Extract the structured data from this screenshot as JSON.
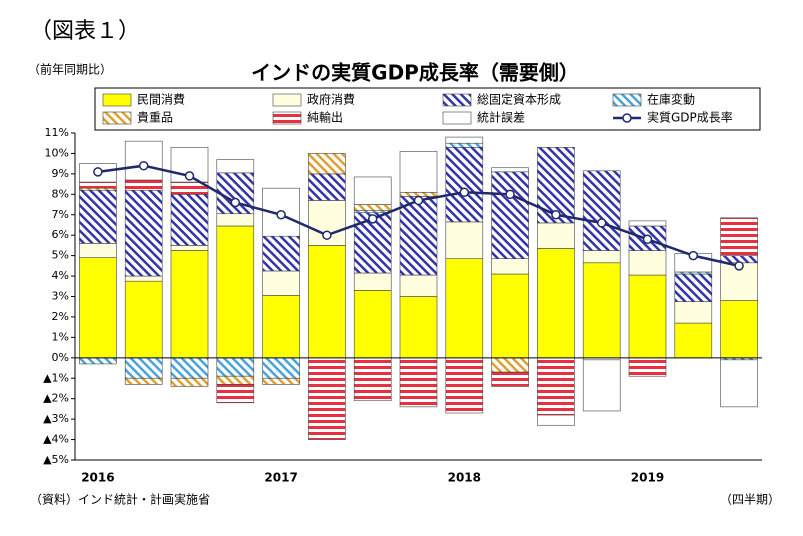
{
  "chart_data": {
    "type": "bar",
    "figure_label": "（図表１）",
    "title": "インドの実質GDP成長率（需要側）",
    "y_axis_label": "（前年同期比）",
    "source": "（資料）インド統計・計画実施省",
    "x_axis_label": "（四半期）",
    "stacked": true,
    "categories": [
      "2016",
      null,
      null,
      null,
      "2017",
      null,
      null,
      null,
      "2018",
      null,
      null,
      null,
      "2019",
      null,
      null
    ],
    "ylim": [
      -5,
      11
    ],
    "yticks": [
      {
        "value": 11,
        "label": "11%"
      },
      {
        "value": 10,
        "label": "10%"
      },
      {
        "value": 9,
        "label": "9%"
      },
      {
        "value": 8,
        "label": "8%"
      },
      {
        "value": 7,
        "label": "7%"
      },
      {
        "value": 6,
        "label": "6%"
      },
      {
        "value": 5,
        "label": "5%"
      },
      {
        "value": 4,
        "label": "4%"
      },
      {
        "value": 3,
        "label": "3%"
      },
      {
        "value": 2,
        "label": "2%"
      },
      {
        "value": 1,
        "label": "1%"
      },
      {
        "value": 0,
        "label": "0%"
      },
      {
        "value": -1,
        "label": "▲1%"
      },
      {
        "value": -2,
        "label": "▲2%"
      },
      {
        "value": -3,
        "label": "▲3%"
      },
      {
        "value": -4,
        "label": "▲4%"
      },
      {
        "value": -5,
        "label": "▲5%"
      }
    ],
    "series": [
      {
        "name": "民間消費",
        "type": "bar",
        "color": "#ffff00",
        "pattern": "solid",
        "values": [
          4.9,
          3.75,
          5.25,
          6.45,
          3.05,
          5.5,
          3.3,
          3.0,
          4.85,
          4.1,
          5.35,
          4.65,
          4.05,
          1.7,
          2.8
        ]
      },
      {
        "name": "政府消費",
        "type": "bar",
        "color": "#ffffe0",
        "pattern": "solid",
        "values": [
          0.7,
          0.25,
          0.25,
          0.6,
          1.2,
          2.2,
          0.85,
          1.05,
          1.8,
          0.75,
          1.25,
          0.6,
          1.2,
          1.05,
          1.85
        ]
      },
      {
        "name": "総固定資本形成",
        "type": "bar",
        "color": "#3333aa",
        "pattern": "diagonal",
        "values": [
          2.6,
          4.2,
          2.5,
          2.0,
          1.7,
          1.3,
          2.95,
          3.85,
          3.65,
          4.25,
          3.7,
          3.9,
          1.2,
          1.35,
          0.35
        ]
      },
      {
        "name": "在庫変動",
        "type": "bar",
        "color": "#4aa3d8",
        "pattern": "diagonal",
        "values": [
          -0.3,
          -1.0,
          -1.0,
          -0.9,
          -1.0,
          0,
          0.1,
          0,
          0.2,
          0,
          0,
          0,
          0,
          0.1,
          -0.1
        ]
      },
      {
        "name": "貴重品",
        "type": "bar",
        "color": "#e0a030",
        "pattern": "diagonal",
        "values": [
          0.1,
          -0.3,
          -0.4,
          -0.4,
          -0.3,
          1.0,
          0.3,
          0.2,
          0,
          -0.7,
          0,
          0,
          0,
          0,
          0
        ]
      },
      {
        "name": "純輸出",
        "type": "bar",
        "color": "#e83040",
        "pattern": "horizontal",
        "values": [
          0.3,
          0.5,
          0.6,
          -0.9,
          0,
          -4.0,
          -2.1,
          -2.4,
          -2.7,
          -0.7,
          -2.8,
          -0.1,
          -0.9,
          0,
          1.85
        ]
      },
      {
        "name": "統計誤差",
        "type": "bar",
        "color": "#ffffff",
        "pattern": "solid",
        "values": [
          0.9,
          1.9,
          1.7,
          0.65,
          2.35,
          0,
          1.35,
          2.0,
          0.3,
          0.2,
          -0.5,
          -2.5,
          0.25,
          0.9,
          -2.3
        ]
      },
      {
        "name": "実質GDP成長率",
        "type": "line",
        "color": "#1f2a6b",
        "pattern": "solid",
        "values": [
          9.1,
          9.4,
          8.9,
          7.6,
          7.0,
          6.0,
          6.8,
          7.7,
          8.1,
          8.0,
          7.0,
          6.6,
          5.8,
          5.0,
          4.5
        ]
      }
    ]
  }
}
